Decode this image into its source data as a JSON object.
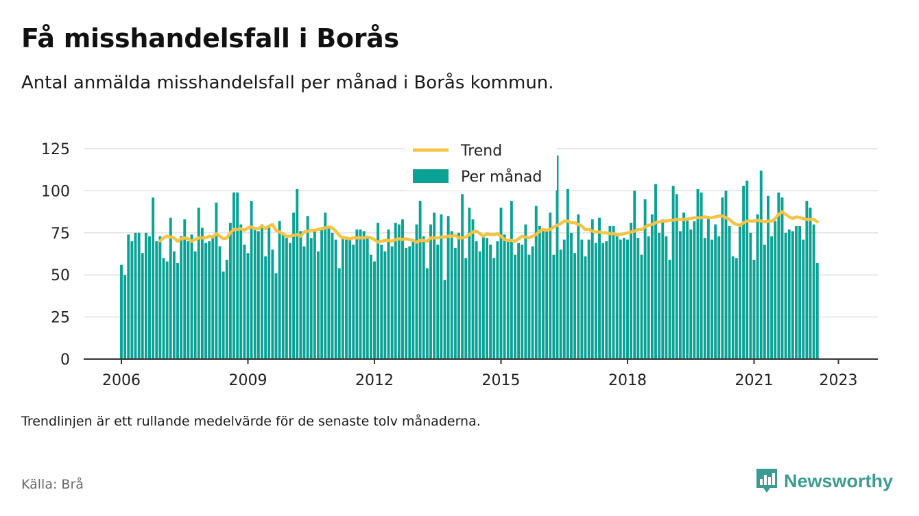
{
  "title": "Få misshandelsfall i Borås",
  "subtitle": "Antal anmälda misshandelsfall per månad i Borås kommun.",
  "note": "Trendlinjen är ett rullande medelvärde för de senaste tolv månaderna.",
  "source": "Källa: Brå",
  "brand": {
    "name": "Newsworthy",
    "icon": "bar-chart-speech-bubble-icon",
    "color": "#3d9c92"
  },
  "colors": {
    "bars": "#0aa295",
    "trend": "#f6c344",
    "grid": "#e0e0e0",
    "axis": "#333333"
  },
  "chart_data": {
    "type": "bar",
    "title": "Få misshandelsfall i Borås",
    "x_start": "2006-01",
    "x_ticks": [
      "2006",
      "2009",
      "2012",
      "2015",
      "2018",
      "2021",
      "2023"
    ],
    "y_ticks": [
      0,
      25,
      50,
      75,
      100,
      125
    ],
    "ylim": [
      0,
      125
    ],
    "grid": true,
    "legend_position": "top-center",
    "series": [
      {
        "name": "Per månad",
        "type": "bar",
        "color": "#0aa295",
        "values": [
          56,
          50,
          74,
          70,
          75,
          75,
          63,
          75,
          73,
          96,
          70,
          73,
          60,
          58,
          84,
          64,
          57,
          73,
          83,
          70,
          74,
          64,
          90,
          78,
          69,
          70,
          72,
          93,
          67,
          52,
          59,
          81,
          99,
          99,
          80,
          68,
          63,
          94,
          77,
          76,
          80,
          61,
          79,
          65,
          51,
          82,
          75,
          72,
          69,
          87,
          101,
          76,
          67,
          85,
          72,
          77,
          64,
          78,
          87,
          78,
          75,
          71,
          54,
          73,
          71,
          71,
          68,
          77,
          77,
          76,
          72,
          62,
          58,
          81,
          68,
          64,
          77,
          67,
          81,
          80,
          83,
          66,
          67,
          71,
          80,
          94,
          73,
          54,
          80,
          87,
          68,
          86,
          47,
          85,
          76,
          66,
          75,
          98,
          60,
          90,
          83,
          70,
          64,
          74,
          72,
          68,
          60,
          70,
          90,
          74,
          70,
          94,
          62,
          69,
          68,
          80,
          62,
          67,
          91,
          79,
          76,
          76,
          87,
          62,
          121,
          65,
          71,
          101,
          75,
          63,
          86,
          71,
          61,
          71,
          83,
          69,
          84,
          69,
          70,
          79,
          79,
          73,
          71,
          72,
          71,
          81,
          100,
          72,
          62,
          95,
          73,
          86,
          104,
          75,
          83,
          73,
          59,
          103,
          98,
          76,
          87,
          84,
          77,
          82,
          101,
          99,
          72,
          85,
          71,
          80,
          73,
          96,
          100,
          79,
          61,
          60,
          79,
          103,
          106,
          75,
          59,
          86,
          112,
          68,
          97,
          73,
          82,
          99,
          96,
          75,
          77,
          76,
          79,
          79,
          71,
          94,
          90,
          80,
          57
        ]
      },
      {
        "name": "Trend",
        "type": "line",
        "color": "#f6c344",
        "values": [
          null,
          null,
          null,
          null,
          null,
          null,
          null,
          null,
          null,
          null,
          null,
          70.2,
          72.0,
          73.0,
          72.5,
          72.0,
          70.0,
          71.5,
          72.0,
          71.5,
          70.0,
          71.0,
          72.0,
          72.0,
          72.0,
          73.0,
          72.5,
          74.5,
          73.0,
          71.5,
          72.0,
          75.0,
          77.0,
          77.0,
          77.5,
          76.5,
          78.0,
          78.5,
          77.5,
          77.5,
          79.0,
          77.5,
          79.0,
          80.0,
          76.5,
          75.5,
          74.5,
          73.0,
          73.0,
          73.5,
          74.0,
          73.0,
          75.5,
          76.0,
          76.5,
          76.5,
          77.0,
          77.5,
          78.0,
          78.5,
          78.0,
          76.0,
          73.5,
          72.0,
          72.0,
          71.5,
          72.0,
          72.0,
          72.0,
          72.0,
          72.5,
          72.0,
          71.0,
          69.5,
          70.0,
          70.5,
          70.5,
          70.0,
          71.0,
          71.5,
          71.0,
          71.5,
          71.0,
          70.5,
          69.5,
          70.5,
          70.5,
          70.0,
          72.0,
          72.0,
          72.0,
          72.5,
          72.5,
          73.0,
          73.0,
          73.5,
          72.0,
          72.0,
          72.5,
          74.0,
          75.5,
          76.0,
          74.5,
          73.0,
          74.5,
          74.0,
          74.0,
          74.5,
          73.0,
          71.0,
          70.5,
          70.5,
          70.0,
          71.5,
          73.0,
          72.5,
          72.0,
          73.0,
          74.0,
          76.0,
          77.0,
          76.5,
          77.0,
          78.5,
          79.5,
          80.5,
          82.0,
          82.0,
          81.0,
          81.0,
          80.0,
          79.0,
          77.0,
          77.0,
          76.0,
          75.5,
          75.5,
          75.0,
          75.0,
          74.5,
          74.5,
          74.0,
          74.0,
          74.5,
          75.0,
          75.5,
          76.0,
          77.0,
          77.0,
          78.5,
          79.5,
          80.0,
          81.0,
          81.5,
          82.0,
          82.0,
          82.5,
          82.5,
          83.0,
          83.0,
          83.0,
          83.0,
          83.5,
          84.0,
          84.0,
          84.0,
          84.5,
          84.0,
          84.0,
          84.5,
          85.0,
          85.0,
          84.0,
          83.0,
          81.0,
          80.0,
          79.5,
          81.0,
          82.0,
          82.0,
          82.0,
          82.5,
          82.0,
          81.5,
          82.0,
          82.0,
          83.5,
          86.0,
          87.5,
          86.0,
          84.5,
          83.5,
          84.5,
          84.0,
          83.5,
          83.0,
          83.0,
          83.0,
          81.5
        ]
      }
    ]
  }
}
